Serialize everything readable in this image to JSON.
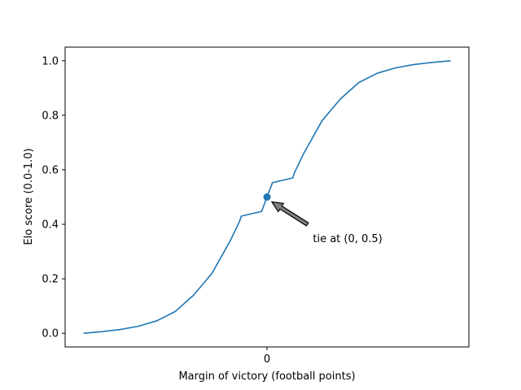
{
  "chart_data": {
    "type": "line",
    "title": "",
    "xlabel": "Margin of victory (football points)",
    "ylabel": "Elo score (0.0-1.0)",
    "xlim": [
      -1.1,
      1.1
    ],
    "ylim": [
      -0.05,
      1.05
    ],
    "x_ticks": [
      0
    ],
    "x_tick_labels": [
      "0"
    ],
    "y_ticks": [
      0.0,
      0.2,
      0.4,
      0.6,
      0.8,
      1.0
    ],
    "y_tick_labels": [
      "0.0",
      "0.2",
      "0.4",
      "0.6",
      "0.8",
      "1.0"
    ],
    "grid": false,
    "legend": "none",
    "colors": {
      "line": "#1f77b4",
      "marker": "#1f77b4",
      "arrow": "#808080"
    },
    "series": [
      {
        "x": [
          -1.0,
          -0.9,
          -0.8,
          -0.7,
          -0.6,
          -0.5,
          -0.4,
          -0.3,
          -0.25,
          -0.2,
          -0.15,
          -0.14,
          -0.03,
          0.0,
          0.03,
          0.14,
          0.15,
          0.2,
          0.25,
          0.3,
          0.4,
          0.5,
          0.6,
          0.7,
          0.8,
          0.9,
          1.0
        ],
        "y": [
          0.0,
          0.006,
          0.014,
          0.026,
          0.046,
          0.08,
          0.14,
          0.22,
          0.28,
          0.34,
          0.41,
          0.43,
          0.447,
          0.5,
          0.553,
          0.57,
          0.59,
          0.66,
          0.72,
          0.78,
          0.86,
          0.92,
          0.954,
          0.974,
          0.986,
          0.994,
          1.0
        ]
      }
    ],
    "highlight_point": {
      "x": 0,
      "y": 0.5
    },
    "annotation": {
      "text": "tie at (0, 0.5)",
      "target_x": 0,
      "target_y": 0.5,
      "text_x": 0.25,
      "text_y": 0.35
    }
  }
}
